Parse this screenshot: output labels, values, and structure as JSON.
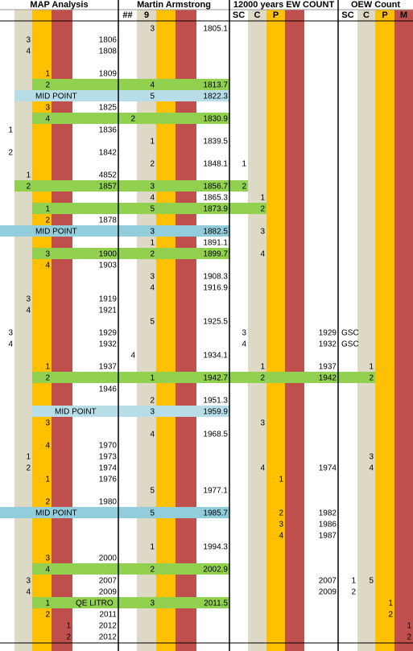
{
  "header": {
    "sections": [
      "MAP Analysis",
      "Martin Armstrong",
      "12000 years EW COUNT",
      "OEW Count"
    ],
    "columns": {
      "5": "##",
      "6": "9",
      "10": "SC",
      "11": "C",
      "12": "P",
      "15": "SC",
      "16": "C",
      "17": "P",
      "18": "M"
    }
  },
  "rows": [
    {
      "cells": {
        "6": "3",
        "9": "1805.1"
      }
    },
    {
      "cells": {
        "1": "3",
        "4": "1806"
      }
    },
    {
      "cells": {
        "1": "4",
        "4": "1808"
      }
    },
    {
      "cells": {}
    },
    {
      "cells": {
        "2": "1",
        "4": "1809"
      }
    },
    {
      "cells": {
        "2": "2",
        "6": "4",
        "9": "1813.7"
      },
      "highlight": {
        "color": "#92d050",
        "cells": [
          2,
          9
        ]
      }
    },
    {
      "cells": {
        "2": "MID POINT",
        "6": "5",
        "9": "1822.3"
      },
      "highlight": {
        "color": "#b7dee8",
        "cells": [
          1,
          9
        ]
      }
    },
    {
      "cells": {
        "2": "3",
        "4": "1825"
      }
    },
    {
      "cells": {
        "2": "4",
        "5": "2",
        "9": "1830.9"
      },
      "highlight": {
        "color": "#92d050",
        "cells": [
          2,
          9
        ]
      }
    },
    {
      "cells": {
        "0": "1",
        "4": "1836"
      }
    },
    {
      "cells": {
        "6": "1",
        "9": "1839.5"
      }
    },
    {
      "cells": {
        "0": "2",
        "4": "1842"
      }
    },
    {
      "cells": {
        "6": "2",
        "9": "1848.1",
        "10": "1"
      }
    },
    {
      "cells": {
        "1": "1",
        "4": "4852"
      }
    },
    {
      "cells": {
        "1": "2",
        "4": "1857",
        "6": "3",
        "9": "1856.7",
        "10": "2"
      },
      "highlight": {
        "color": "#92d050",
        "cells": [
          1,
          10
        ]
      }
    },
    {
      "cells": {
        "6": "4",
        "9": "1865.3",
        "11": "1"
      }
    },
    {
      "cells": {
        "2": "1",
        "6": "5",
        "9": "1873.9",
        "11": "2"
      },
      "highlight": {
        "color": "#92d050",
        "cells": [
          2,
          11
        ]
      }
    },
    {
      "cells": {
        "2": "2",
        "4": "1878"
      }
    },
    {
      "cells": {
        "2": "MID POINT",
        "6": "3",
        "9": "1882.5",
        "11": "3"
      },
      "highlight": {
        "color": "#92cddc",
        "cells": [
          0,
          9
        ]
      }
    },
    {
      "cells": {
        "6": "1",
        "9": "1891.1"
      }
    },
    {
      "cells": {
        "2": "3",
        "4": "1900",
        "6": "2",
        "9": "1899.7",
        "11": "4"
      },
      "highlight": {
        "color": "#92d050",
        "cells": [
          2,
          9
        ]
      }
    },
    {
      "cells": {
        "2": "4",
        "4": "1903"
      }
    },
    {
      "cells": {
        "6": "3",
        "9": "1908.3"
      }
    },
    {
      "cells": {
        "6": "4",
        "9": "1916.9"
      }
    },
    {
      "cells": {
        "1": "3",
        "4": "1919"
      }
    },
    {
      "cells": {
        "1": "4",
        "4": "1921"
      }
    },
    {
      "cells": {
        "6": "5",
        "9": "1925.5"
      }
    },
    {
      "cells": {
        "0": "3",
        "4": "1929",
        "10": "3",
        "14": "1929",
        "15": "GSC"
      }
    },
    {
      "cells": {
        "0": "4",
        "4": "1932",
        "10": "4",
        "14": "1932",
        "15": "GSC"
      }
    },
    {
      "cells": {
        "5": "4",
        "9": "1934.1"
      }
    },
    {
      "cells": {
        "2": "1",
        "4": "1937",
        "11": "1",
        "14": "1937",
        "16": "1"
      }
    },
    {
      "cells": {
        "2": "2",
        "6": "1",
        "9": "1942.7",
        "11": "2",
        "14": "1942",
        "16": "2"
      },
      "highlight": {
        "color": "#92d050",
        "cells": [
          2,
          16
        ]
      }
    },
    {
      "cells": {
        "4": "1946"
      }
    },
    {
      "cells": {
        "6": "2",
        "9": "1951.3"
      }
    },
    {
      "cells": {
        "3": "MID POINT",
        "6": "3",
        "9": "1959.9"
      },
      "highlight": {
        "color": "#b7dee8",
        "cells": [
          2,
          9
        ]
      }
    },
    {
      "cells": {
        "2": "3",
        "11": "3"
      }
    },
    {
      "cells": {
        "6": "4",
        "9": "1968.5"
      }
    },
    {
      "cells": {
        "2": "4",
        "4": "1970"
      }
    },
    {
      "cells": {
        "1": "1",
        "4": "1973",
        "16": "3"
      }
    },
    {
      "cells": {
        "1": "2",
        "4": "1974",
        "11": "4",
        "14": "1974",
        "16": "4"
      }
    },
    {
      "cells": {
        "2": "1",
        "4": "1976",
        "12": "1"
      }
    },
    {
      "cells": {
        "6": "5",
        "9": "1977.1"
      }
    },
    {
      "cells": {
        "2": "2",
        "4": "1980"
      }
    },
    {
      "cells": {
        "2": "MID POINT",
        "6": "5",
        "9": "1985.7",
        "12": "2",
        "14": "1982"
      },
      "highlight": {
        "color": "#92cddc",
        "cells": [
          0,
          9
        ]
      }
    },
    {
      "cells": {
        "12": "3",
        "14": "1986"
      }
    },
    {
      "cells": {
        "12": "4",
        "14": "1987"
      }
    },
    {
      "cells": {
        "6": "1",
        "9": "1994.3"
      }
    },
    {
      "cells": {
        "2": "3",
        "4": "2000"
      }
    },
    {
      "cells": {
        "2": "4",
        "6": "2",
        "9": "2002.9"
      },
      "highlight": {
        "color": "#92d050",
        "cells": [
          2,
          9
        ]
      }
    },
    {
      "cells": {
        "1": "3",
        "4": "2007",
        "14": "2007",
        "15": "1",
        "16": "5"
      }
    },
    {
      "cells": {
        "1": "4",
        "4": "2009",
        "14": "2009",
        "15": "2"
      }
    },
    {
      "cells": {
        "2": "1",
        "4": "QE LITRO",
        "6": "3",
        "9": "2011.5",
        "17": "1"
      },
      "highlight": {
        "color": "#92d050",
        "cells": [
          2,
          9
        ]
      }
    },
    {
      "cells": {
        "2": "2",
        "4": "2011",
        "17": "2"
      }
    },
    {
      "cells": {
        "3": "1",
        "4": "2012",
        "18": "1"
      }
    },
    {
      "cells": {
        "3": "2",
        "4": "2012",
        "18": "2"
      }
    }
  ]
}
